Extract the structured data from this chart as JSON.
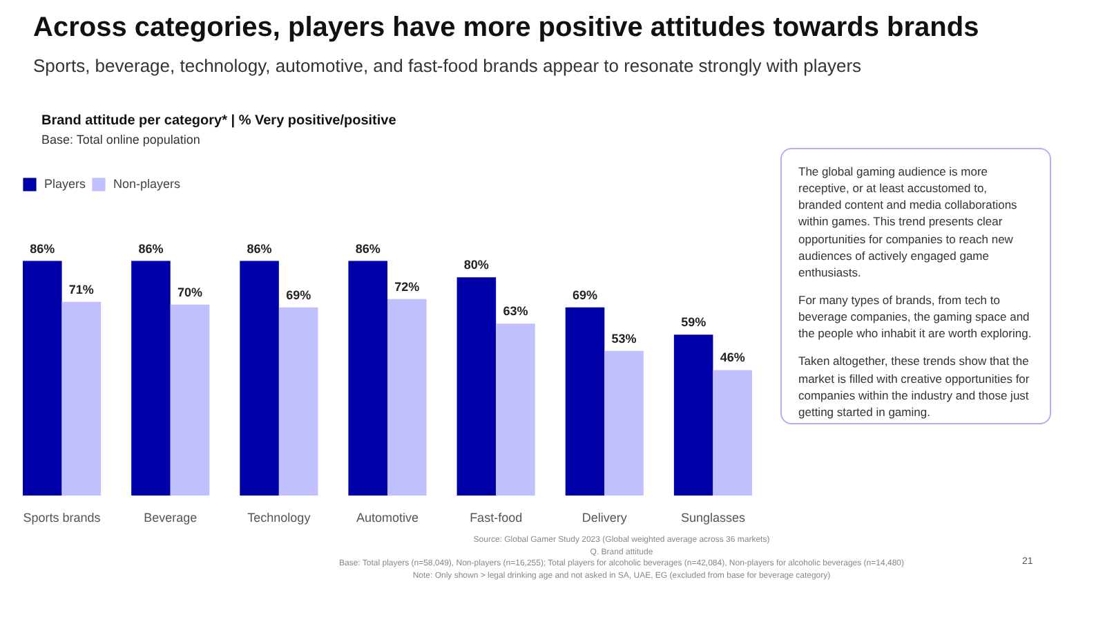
{
  "chart_data": {
    "type": "bar",
    "title": "Across categories, players have more positive attitudes towards brands",
    "subtitle": "Sports, beverage, technology, automotive, and fast-food brands appear to resonate strongly with players",
    "categories": [
      "Sports brands",
      "Beverage",
      "Technology",
      "Automotive",
      "Fast-food",
      "Delivery",
      "Sunglasses"
    ],
    "series": [
      {
        "name": "Players",
        "color": "#0000a8",
        "values": [
          86,
          86,
          86,
          86,
          80,
          69,
          59
        ],
        "value_labels": [
          "86%",
          "86%",
          "86%",
          "86%",
          "80%",
          "69%",
          "59%"
        ]
      },
      {
        "name": "Non-players",
        "color": "#c0c0ff",
        "values": [
          71,
          70,
          69,
          72,
          63,
          53,
          46
        ],
        "value_labels": [
          "71%",
          "70%",
          "69%",
          "72%",
          "63%",
          "53%",
          "46%"
        ]
      }
    ],
    "legend": "top left",
    "grid": false,
    "annotations": [
      "Brand attitude per category* | % Very positive/positive",
      "Base: Total online population",
      "The global gaming audience is more receptive, or at least accustomed to, branded content and media collaborations within games. This trend presents clear opportunities for companies to reach new audiences of actively engaged game enthusiasts.",
      "For many types of brands, from tech to beverage companies, the gaming space and the people who inhabit it are worth exploring.",
      "Taken altogether, these trends show that the market is filled with creative opportunities for companies within the industry and those just getting started in gaming.",
      "Source: Global Gamer Study 2023 (Global weighted average across 36 markets)",
      "Q. Brand attitude",
      "Base: Total players (n=58,049), Non-players (n=16,255); Total players for alcoholic beverages (n=42,084), Non-players for alcoholic beverages (n=14,480)",
      "Note: Only shown > legal drinking age and not asked in SA, UAE, EG (excluded from base for beverage category)",
      "21"
    ]
  }
}
